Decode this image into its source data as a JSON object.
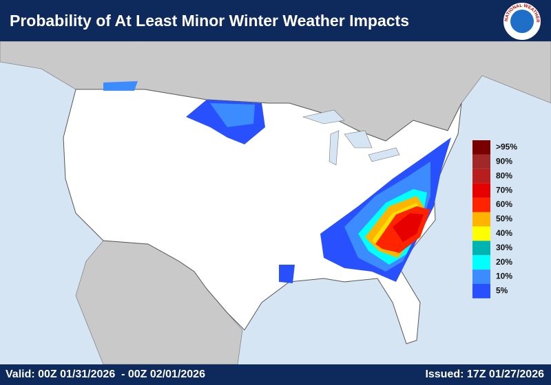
{
  "header": {
    "title": "Probability of At Least Minor Winter Weather Impacts"
  },
  "logo": {
    "text": "NATIONAL WEATHER SERVICE"
  },
  "legend": {
    "items": [
      {
        "label": ">95%",
        "color": "#7a0000"
      },
      {
        "label": "90%",
        "color": "#a02828"
      },
      {
        "label": "80%",
        "color": "#b81e1e"
      },
      {
        "label": "70%",
        "color": "#e60000"
      },
      {
        "label": "60%",
        "color": "#ff2400"
      },
      {
        "label": "50%",
        "color": "#ffb400"
      },
      {
        "label": "40%",
        "color": "#ffff00"
      },
      {
        "label": "30%",
        "color": "#00b4b4"
      },
      {
        "label": "20%",
        "color": "#00ffff"
      },
      {
        "label": "10%",
        "color": "#3c8cff"
      },
      {
        "label": "5%",
        "color": "#2850ff"
      }
    ]
  },
  "footer": {
    "valid": "Valid: 00Z 01/31/2026  - 00Z 02/01/2026",
    "issued": "Issued: 17Z 01/27/2026"
  }
}
